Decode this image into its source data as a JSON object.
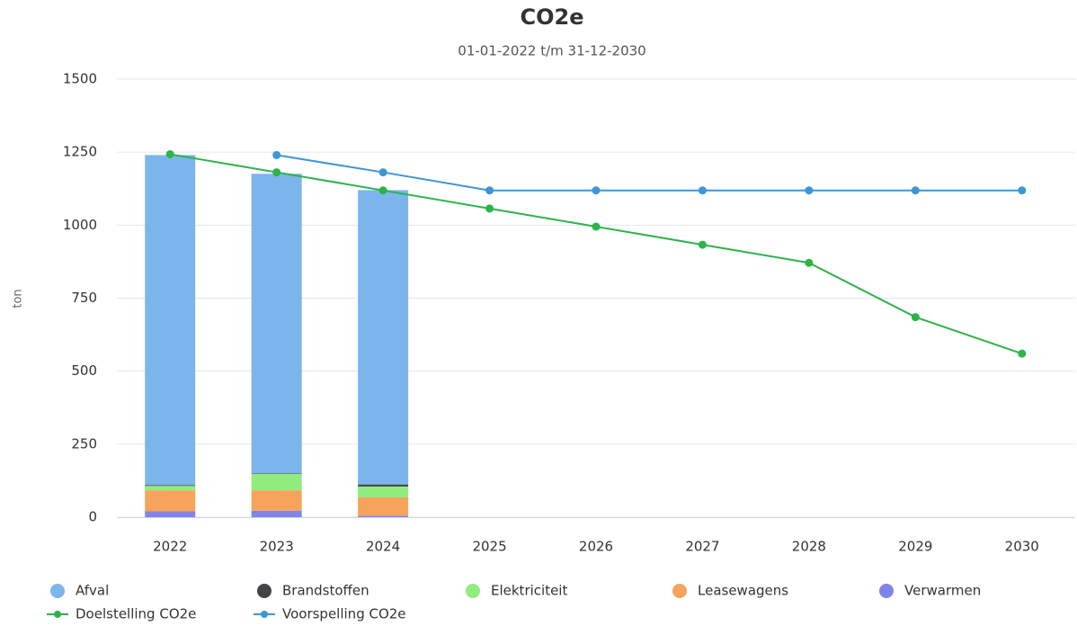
{
  "chart_data": {
    "type": "bar",
    "title": "CO2e",
    "subtitle": "01-01-2022 t/m 31-12-2030",
    "y_label": "ton",
    "categories": [
      "2022",
      "2023",
      "2024",
      "2025",
      "2026",
      "2027",
      "2028",
      "2029",
      "2030"
    ],
    "ylim": [
      0,
      1500
    ],
    "yticks": [
      0,
      250,
      500,
      750,
      1000,
      1250,
      1500
    ],
    "grid": true,
    "stacked": true,
    "series": [
      {
        "name": "Afval",
        "color": "#7cb5ec",
        "kind": "bar",
        "values": [
          1130,
          1026,
          1008,
          null,
          null,
          null,
          null,
          null,
          null
        ]
      },
      {
        "name": "Brandstoffen",
        "color": "#434348",
        "kind": "bar",
        "values": [
          3,
          2,
          7,
          null,
          null,
          null,
          null,
          null,
          null
        ]
      },
      {
        "name": "Elektriciteit",
        "color": "#90ed7d",
        "kind": "bar",
        "values": [
          15,
          56,
          37,
          null,
          null,
          null,
          null,
          null,
          null
        ]
      },
      {
        "name": "Leasewagens",
        "color": "#f7a35c",
        "kind": "bar",
        "values": [
          72,
          70,
          63,
          null,
          null,
          null,
          null,
          null,
          null
        ]
      },
      {
        "name": "Verwarmen",
        "color": "#8085e9",
        "kind": "bar",
        "values": [
          20,
          22,
          5,
          null,
          null,
          null,
          null,
          null,
          null
        ]
      },
      {
        "name": "Doelstelling CO2e",
        "color": "#2db34a",
        "kind": "line",
        "values": [
          1243,
          1181,
          1119,
          1057,
          995,
          933,
          871,
          685,
          560
        ]
      },
      {
        "name": "Voorspelling CO2e",
        "color": "#3d96d6",
        "kind": "line",
        "values": [
          null,
          1240,
          1181,
          1119,
          1119,
          1119,
          1119,
          1119,
          1119
        ]
      }
    ]
  }
}
